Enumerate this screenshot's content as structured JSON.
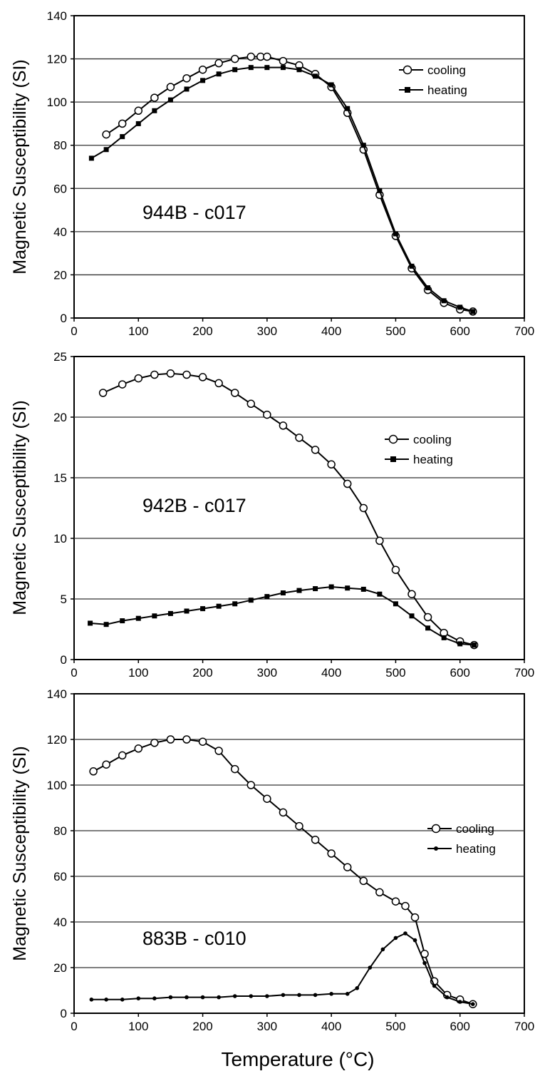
{
  "figure": {
    "xlabel": "Temperature (°C)"
  },
  "chart_data": [
    {
      "type": "line",
      "annotation": "944B - c017",
      "ylabel": "Magnetic Susceptibility (SI)",
      "xlim": [
        0,
        700
      ],
      "ylim": [
        0,
        140
      ],
      "xticks": [
        0,
        100,
        200,
        300,
        400,
        500,
        600,
        700
      ],
      "yticks": [
        0,
        20,
        40,
        60,
        80,
        100,
        120,
        140
      ],
      "grid": "horizontal",
      "legend_position": "top-right",
      "series": [
        {
          "name": "cooling",
          "marker": "open-circle",
          "color": "#000000",
          "x": [
            50,
            75,
            100,
            125,
            150,
            175,
            200,
            225,
            250,
            275,
            290,
            300,
            325,
            350,
            375,
            400,
            425,
            450,
            475,
            500,
            525,
            550,
            575,
            600,
            620
          ],
          "y": [
            85,
            90,
            96,
            102,
            107,
            111,
            115,
            118,
            120,
            121,
            121,
            121,
            119,
            117,
            113,
            107,
            95,
            78,
            57,
            38,
            23,
            13,
            7,
            4,
            3
          ]
        },
        {
          "name": "heating",
          "marker": "filled-square",
          "color": "#000000",
          "x": [
            27,
            50,
            75,
            100,
            125,
            150,
            175,
            200,
            225,
            250,
            275,
            300,
            325,
            350,
            375,
            400,
            425,
            450,
            475,
            500,
            525,
            550,
            575,
            600,
            620
          ],
          "y": [
            74,
            78,
            84,
            90,
            96,
            101,
            106,
            110,
            113,
            115,
            116,
            116,
            116,
            115,
            112,
            108,
            97,
            80,
            59,
            39,
            24,
            14,
            8,
            5,
            3
          ]
        }
      ]
    },
    {
      "type": "line",
      "annotation": "942B - c017",
      "ylabel": "Magnetic Susceptibility (SI)",
      "xlim": [
        0,
        700
      ],
      "ylim": [
        0,
        25
      ],
      "xticks": [
        0,
        100,
        200,
        300,
        400,
        500,
        600,
        700
      ],
      "yticks": [
        0,
        5,
        10,
        15,
        20,
        25
      ],
      "grid": "horizontal",
      "legend_position": "right",
      "series": [
        {
          "name": "cooling",
          "marker": "open-circle",
          "color": "#000000",
          "x": [
            45,
            75,
            100,
            125,
            150,
            175,
            200,
            225,
            250,
            275,
            300,
            325,
            350,
            375,
            400,
            425,
            450,
            475,
            500,
            525,
            550,
            575,
            600,
            622
          ],
          "y": [
            22,
            22.7,
            23.2,
            23.5,
            23.6,
            23.5,
            23.3,
            22.8,
            22,
            21.1,
            20.2,
            19.3,
            18.3,
            17.3,
            16.1,
            14.5,
            12.5,
            9.8,
            7.4,
            5.4,
            3.5,
            2.2,
            1.5,
            1.2
          ]
        },
        {
          "name": "heating",
          "marker": "filled-square",
          "color": "#000000",
          "x": [
            25,
            50,
            75,
            100,
            125,
            150,
            175,
            200,
            225,
            250,
            275,
            300,
            325,
            350,
            375,
            400,
            425,
            450,
            475,
            500,
            525,
            550,
            575,
            600,
            622
          ],
          "y": [
            3,
            2.9,
            3.2,
            3.4,
            3.6,
            3.8,
            4,
            4.2,
            4.4,
            4.6,
            4.9,
            5.2,
            5.5,
            5.7,
            5.85,
            6,
            5.9,
            5.8,
            5.4,
            4.6,
            3.6,
            2.6,
            1.8,
            1.3,
            1.2
          ]
        }
      ]
    },
    {
      "type": "line",
      "annotation": "883B - c010",
      "ylabel": "Magnetic Susceptibility (SI)",
      "xlabel": "Temperature (°C)",
      "xlim": [
        0,
        700
      ],
      "ylim": [
        0,
        140
      ],
      "xticks": [
        0,
        100,
        200,
        300,
        400,
        500,
        600,
        700
      ],
      "yticks": [
        0,
        20,
        40,
        60,
        80,
        100,
        120,
        140
      ],
      "grid": "horizontal",
      "legend_position": "top-right",
      "series": [
        {
          "name": "cooling",
          "marker": "open-circle",
          "color": "#000000",
          "x": [
            30,
            50,
            75,
            100,
            125,
            150,
            175,
            200,
            225,
            250,
            275,
            300,
            325,
            350,
            375,
            400,
            425,
            450,
            475,
            500,
            515,
            530,
            545,
            560,
            580,
            600,
            620
          ],
          "y": [
            106,
            109,
            113,
            116,
            118.5,
            120,
            120,
            119,
            115,
            107,
            100,
            94,
            88,
            82,
            76,
            70,
            64,
            58,
            53,
            49,
            47,
            42,
            26,
            14,
            8,
            6,
            4
          ]
        },
        {
          "name": "heating",
          "marker": "filled-dot",
          "color": "#000000",
          "x": [
            27,
            50,
            75,
            100,
            125,
            150,
            175,
            200,
            225,
            250,
            275,
            300,
            325,
            350,
            375,
            400,
            425,
            440,
            460,
            480,
            500,
            515,
            530,
            545,
            560,
            580,
            600,
            620
          ],
          "y": [
            6,
            6,
            6,
            6.5,
            6.5,
            7,
            7,
            7,
            7,
            7.5,
            7.5,
            7.5,
            8,
            8,
            8,
            8.5,
            8.5,
            11,
            20,
            28,
            33,
            35,
            32,
            22,
            12,
            7,
            5,
            4
          ]
        }
      ]
    }
  ]
}
